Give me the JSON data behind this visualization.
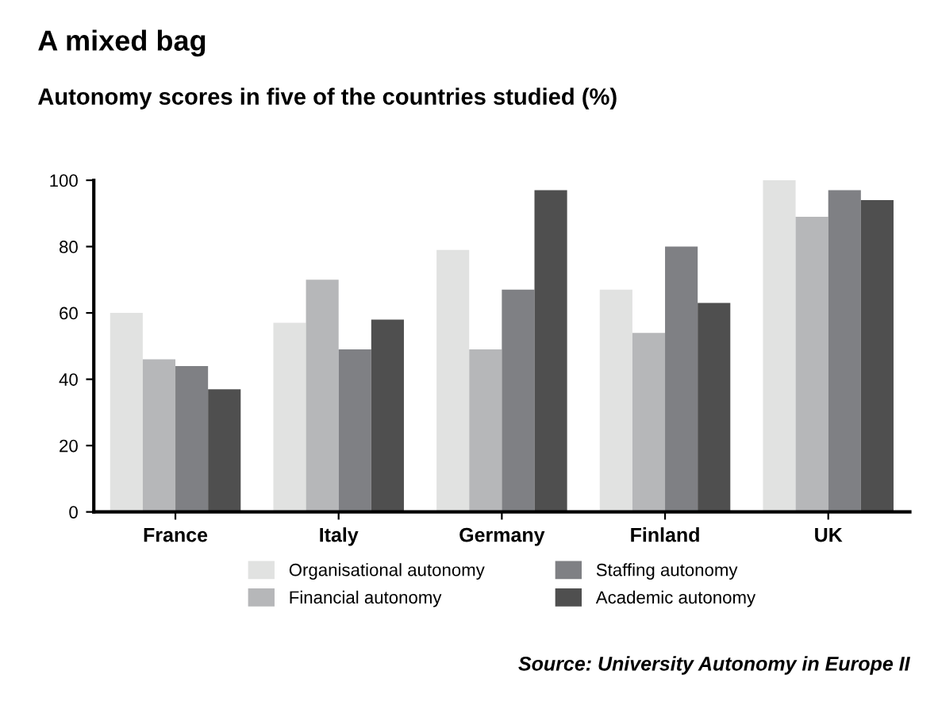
{
  "chart_data": {
    "type": "bar",
    "title": "A mixed bag",
    "subtitle": "Autonomy scores in five of the countries studied (%)",
    "categories": [
      "France",
      "Italy",
      "Germany",
      "Finland",
      "UK"
    ],
    "series": [
      {
        "name": "Organisational autonomy",
        "color": "#e1e2e1",
        "values": [
          60,
          57,
          79,
          67,
          100
        ]
      },
      {
        "name": "Financial autonomy",
        "color": "#b6b7b9",
        "values": [
          46,
          70,
          49,
          54,
          89
        ]
      },
      {
        "name": "Staffing autonomy",
        "color": "#7f8084",
        "values": [
          44,
          49,
          67,
          80,
          97
        ]
      },
      {
        "name": "Academic autonomy",
        "color": "#4f4f4f",
        "values": [
          37,
          58,
          97,
          63,
          94
        ]
      }
    ],
    "ylim": [
      0,
      100
    ],
    "yticks": [
      0,
      20,
      40,
      60,
      80,
      100
    ],
    "grid": false,
    "legend": "bottom",
    "annotations": [
      "Source: University Autonomy in Europe II"
    ]
  }
}
